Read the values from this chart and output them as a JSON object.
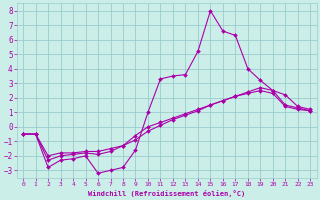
{
  "xlabel": "Windchill (Refroidissement éolien,°C)",
  "bg_color": "#cceee8",
  "grid_color": "#99cccc",
  "line_color": "#aa00aa",
  "spine_color": "#99cccc",
  "xlim": [
    -0.5,
    23.5
  ],
  "ylim": [
    -3.5,
    8.5
  ],
  "xticks": [
    0,
    1,
    2,
    3,
    4,
    5,
    6,
    7,
    8,
    9,
    10,
    11,
    12,
    13,
    14,
    15,
    16,
    17,
    18,
    19,
    20,
    21,
    22,
    23
  ],
  "yticks": [
    -3,
    -2,
    -1,
    0,
    1,
    2,
    3,
    4,
    5,
    6,
    7,
    8
  ],
  "line1_x": [
    0,
    1,
    2,
    3,
    4,
    5,
    6,
    7,
    8,
    9,
    10,
    11,
    12,
    13,
    14,
    15,
    16,
    17,
    18,
    19,
    20,
    21,
    22,
    23
  ],
  "line1_y": [
    -0.5,
    -0.5,
    -2.8,
    -2.3,
    -2.2,
    -2.0,
    -3.2,
    -3.0,
    -2.8,
    -1.6,
    1.0,
    3.3,
    3.5,
    3.6,
    5.2,
    8.0,
    6.6,
    6.3,
    4.0,
    3.2,
    2.5,
    2.2,
    1.4,
    1.2
  ],
  "line2_x": [
    0,
    1,
    2,
    3,
    4,
    5,
    6,
    7,
    8,
    9,
    10,
    11,
    12,
    13,
    14,
    15,
    16,
    17,
    18,
    19,
    20,
    21,
    22,
    23
  ],
  "line2_y": [
    -0.5,
    -0.5,
    -2.0,
    -1.8,
    -1.8,
    -1.7,
    -1.7,
    -1.5,
    -1.3,
    -0.9,
    -0.3,
    0.1,
    0.5,
    0.8,
    1.1,
    1.5,
    1.8,
    2.1,
    2.4,
    2.7,
    2.5,
    1.5,
    1.3,
    1.1
  ],
  "line3_x": [
    0,
    1,
    2,
    3,
    4,
    5,
    6,
    7,
    8,
    9,
    10,
    11,
    12,
    13,
    14,
    15,
    16,
    17,
    18,
    19,
    20,
    21,
    22,
    23
  ],
  "line3_y": [
    -0.5,
    -0.5,
    -2.3,
    -2.0,
    -1.9,
    -1.8,
    -1.9,
    -1.7,
    -1.3,
    -0.6,
    0.0,
    0.3,
    0.6,
    0.9,
    1.2,
    1.5,
    1.8,
    2.1,
    2.3,
    2.5,
    2.3,
    1.4,
    1.2,
    1.1
  ],
  "markersize": 2.0,
  "linewidth": 0.8
}
